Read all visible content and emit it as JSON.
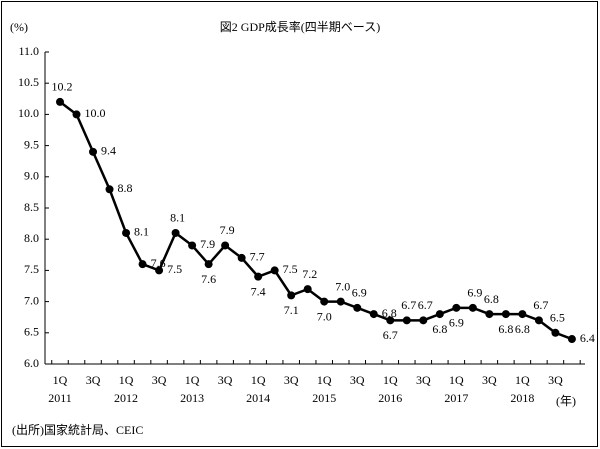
{
  "chart_data": {
    "type": "line",
    "title": "図2 GDP成長率(四半期ベース)",
    "y_unit": "(%)",
    "x_unit": "(年)",
    "source": "(出所)国家統計局、CEIC",
    "categories": [
      "1Q",
      null,
      "3Q",
      null,
      "1Q",
      null,
      "3Q",
      null,
      "1Q",
      null,
      "3Q",
      null,
      "1Q",
      null,
      "3Q",
      null,
      "1Q",
      null,
      "3Q",
      null,
      "1Q",
      null,
      "3Q",
      null,
      "1Q",
      null,
      "3Q",
      null,
      "1Q",
      null,
      "3Q",
      null
    ],
    "years": [
      "2011",
      null,
      null,
      null,
      "2012",
      null,
      null,
      null,
      "2013",
      null,
      null,
      null,
      "2014",
      null,
      null,
      null,
      "2015",
      null,
      null,
      null,
      "2016",
      null,
      null,
      null,
      "2017",
      null,
      null,
      null,
      "2018",
      null,
      null,
      null
    ],
    "series": [
      {
        "color": "#000000",
        "values": [
          10.2,
          10.0,
          9.4,
          8.8,
          8.1,
          7.6,
          7.5,
          8.1,
          7.9,
          7.6,
          7.9,
          7.7,
          7.4,
          7.5,
          7.1,
          7.2,
          7.0,
          7.0,
          6.9,
          6.8,
          6.7,
          6.7,
          6.7,
          6.8,
          6.9,
          6.9,
          6.8,
          6.8,
          6.8,
          6.7,
          6.5,
          6.4
        ],
        "value_labels": [
          "10.2",
          "10.0",
          "9.4",
          "8.8",
          "8.1",
          "7.6",
          "7.5",
          "8.1",
          "7.9",
          "7.6",
          "7.9",
          "7.7",
          "7.4",
          "7.5",
          "7.1",
          "7.2",
          "7.0",
          "7.0",
          "6.9",
          "6.8",
          "6.7",
          "6.7",
          "6.7",
          "6.8",
          "6.9",
          "6.9",
          "6.8",
          "6.8",
          "6.8",
          "6.7",
          "6.5",
          "6.4"
        ]
      }
    ],
    "ylim": [
      6.0,
      11.0
    ],
    "yticks": [
      {
        "value": 6.0,
        "label": "6.0"
      },
      6.5,
      {
        "value": 7.0,
        "label": "7.0"
      },
      7.5,
      {
        "value": 8.0,
        "label": "8.0"
      },
      8.5,
      {
        "value": 9.0,
        "label": "9.0"
      },
      9.5,
      {
        "value": 10.0,
        "label": "10.0"
      },
      10.5,
      {
        "value": 11.0,
        "label": "11.0"
      }
    ],
    "grid": false
  }
}
